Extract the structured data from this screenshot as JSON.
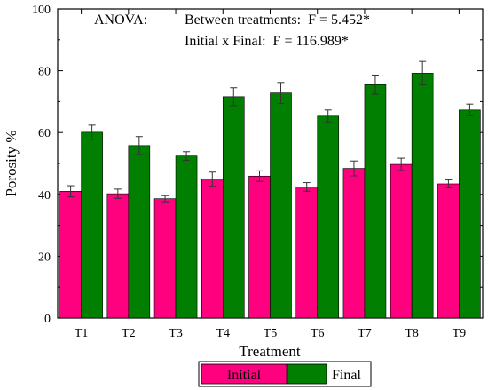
{
  "chart_data": {
    "type": "bar",
    "title": "",
    "xlabel": "Treatment",
    "ylabel": "Porosity %",
    "ylim": [
      0,
      100
    ],
    "yticks": [
      0,
      20,
      40,
      60,
      80,
      100
    ],
    "categories": [
      "T1",
      "T2",
      "T3",
      "T4",
      "T5",
      "T6",
      "T7",
      "T8",
      "T9"
    ],
    "series": [
      {
        "name": "Initial",
        "color": "#ff007f",
        "values": [
          41.0,
          40.2,
          38.6,
          44.9,
          45.9,
          42.4,
          48.4,
          49.7,
          43.4
        ],
        "errors": [
          1.8,
          1.5,
          1.0,
          2.3,
          1.7,
          1.4,
          2.4,
          2.0,
          1.3
        ]
      },
      {
        "name": "Final",
        "color": "#007f00",
        "values": [
          60.1,
          55.8,
          52.4,
          71.6,
          72.8,
          65.3,
          75.5,
          79.2,
          67.3
        ],
        "errors": [
          2.3,
          2.9,
          1.4,
          2.9,
          3.4,
          2.0,
          3.1,
          3.8,
          1.9
        ]
      }
    ],
    "grid": false,
    "legend_position": "bottom-center",
    "annotations": [
      "ANOVA:",
      "Between treatments:  F = 5.452*",
      "Initial x Final:  F = 116.989*"
    ]
  }
}
